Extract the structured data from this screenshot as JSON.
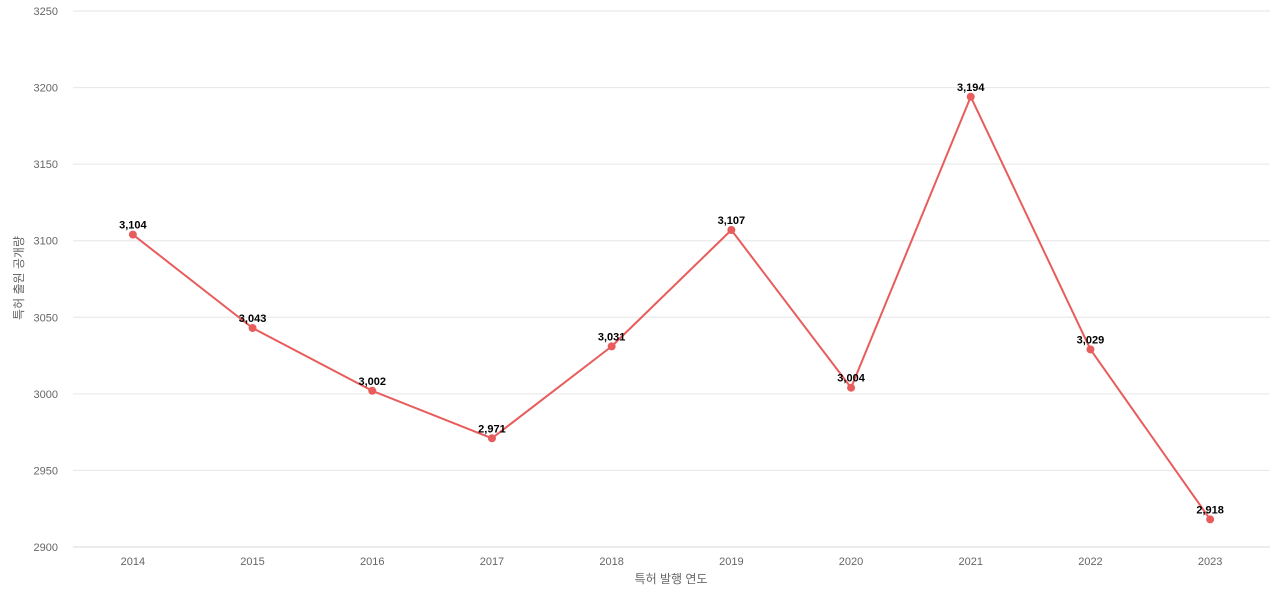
{
  "chart_data": {
    "type": "line",
    "title": "",
    "xlabel": "특허 발행 연도",
    "ylabel": "특허 출원 공개량",
    "categories": [
      "2014",
      "2015",
      "2016",
      "2017",
      "2018",
      "2019",
      "2020",
      "2021",
      "2022",
      "2023"
    ],
    "series": [
      {
        "values": [
          3104,
          3043,
          3002,
          2971,
          3031,
          3107,
          3004,
          3194,
          3029,
          2918
        ],
        "value_labels": [
          "3,104",
          "3,043",
          "3,002",
          "2,971",
          "3,031",
          "3,107",
          "3,004",
          "3,194",
          "3,029",
          "2,918"
        ],
        "color": "#e85c5c"
      }
    ],
    "ylim": [
      2900,
      3250
    ],
    "yticks": [
      "2900",
      "2950",
      "3000",
      "3050",
      "3100",
      "3150",
      "3200",
      "3250"
    ],
    "grid": true,
    "legend": "none"
  }
}
